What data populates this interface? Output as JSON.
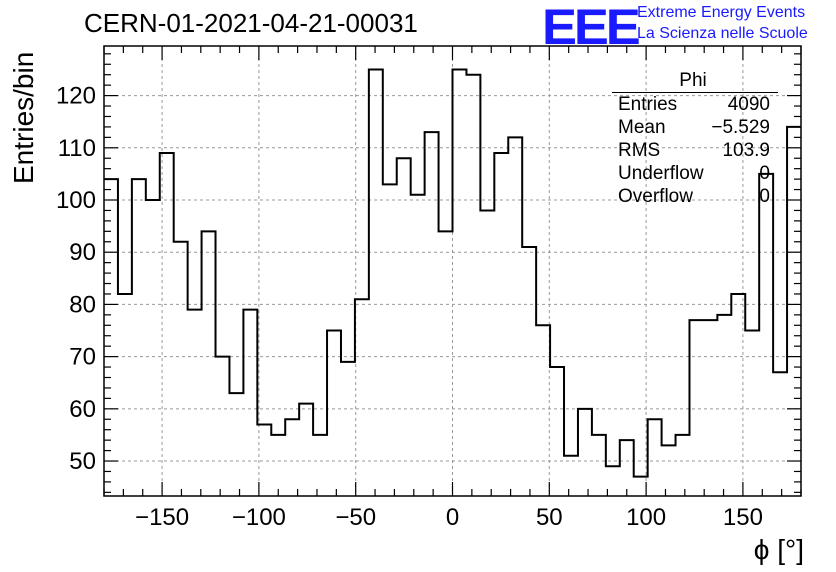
{
  "title": "CERN-01-2021-04-21-00031",
  "logo": {
    "mark": "EEE",
    "line1": "Extreme Energy Events",
    "line2": "La Scienza nelle Scuole"
  },
  "stats": {
    "name": "Phi",
    "rows": [
      {
        "label": "Entries",
        "value": "4090"
      },
      {
        "label": "Mean",
        "value": "−5.529"
      },
      {
        "label": "RMS",
        "value": "103.9"
      },
      {
        "label": "Underflow",
        "value": "0"
      },
      {
        "label": "Overflow",
        "value": "0"
      }
    ]
  },
  "chart_data": {
    "type": "histogram",
    "xlabel": "ϕ [°]",
    "ylabel": "Entries/bin",
    "xlim": [
      -180,
      180
    ],
    "ylim": [
      43.3,
      129.5
    ],
    "bin_edges_start": -180,
    "bin_width": 7.2,
    "values": [
      104,
      82,
      104,
      100,
      109,
      92,
      79,
      94,
      70,
      63,
      79,
      57,
      55,
      58,
      61,
      55,
      75,
      69,
      81,
      125,
      103,
      108,
      101,
      113,
      94,
      125,
      124,
      98,
      109,
      112,
      91,
      76,
      68,
      51,
      60,
      55,
      49,
      54,
      47,
      58,
      53,
      55,
      77,
      77,
      78,
      82,
      75,
      105,
      67,
      114
    ],
    "x_ticks": [
      -150,
      -100,
      -50,
      0,
      50,
      100,
      150
    ],
    "x_tick_labels": [
      "−150",
      "−100",
      "−50",
      "0",
      "50",
      "100",
      "150"
    ],
    "y_ticks": [
      50,
      60,
      70,
      80,
      90,
      100,
      110,
      120
    ],
    "y_tick_labels": [
      "50",
      "60",
      "70",
      "80",
      "90",
      "100",
      "110",
      "120"
    ],
    "grid": true,
    "line_color": "#000000",
    "grid_color": "#999999"
  }
}
